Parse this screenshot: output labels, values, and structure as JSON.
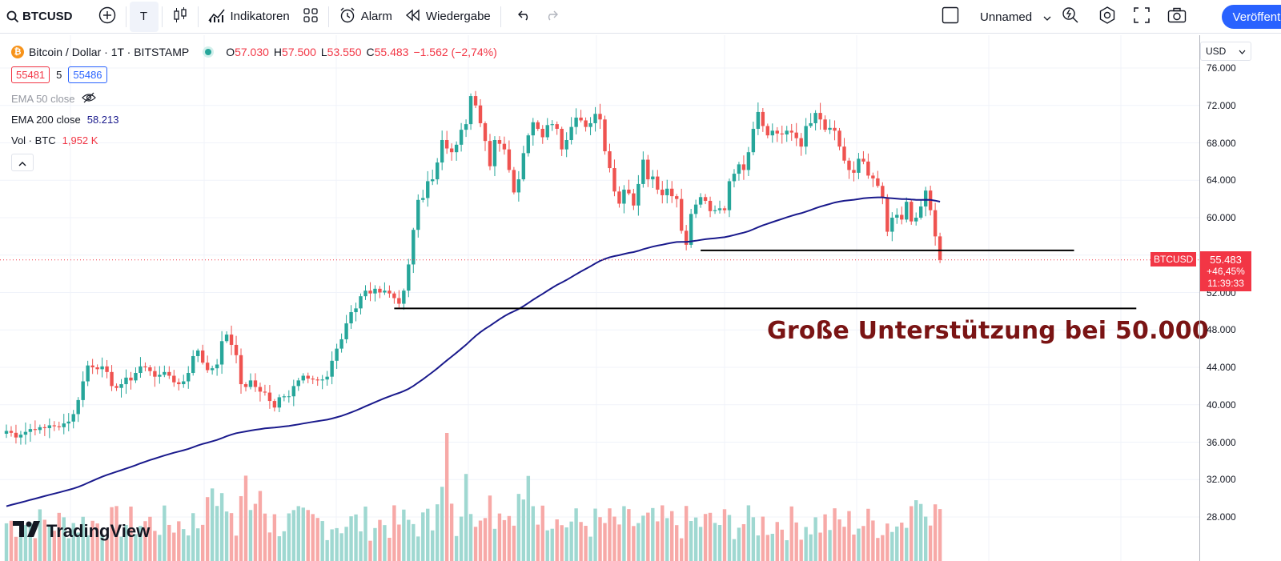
{
  "toolbar": {
    "symbol": "BTCUSD",
    "timeframe": "T",
    "indicators_label": "Indikatoren",
    "alert_label": "Alarm",
    "replay_label": "Wiedergabe",
    "layout_name": "Unnamed",
    "publish_label": "Veröffentli"
  },
  "legend": {
    "title": "Bitcoin / Dollar · 1T · BITSTAMP",
    "o_label": "O",
    "o_value": "57.030",
    "h_label": "H",
    "h_value": "57.500",
    "l_label": "L",
    "l_value": "53.550",
    "c_label": "C",
    "c_value": "55.483",
    "change": "−1.562 (−2,74%)",
    "bid": "55481",
    "spread": "5",
    "ask": "55486",
    "ema50_label": "EMA 50 close",
    "ema200_label": "EMA 200 close",
    "ema200_value": "58.213",
    "vol_label": "Vol · BTC",
    "vol_value": "1,952 K"
  },
  "price_scale": {
    "currency": "USD",
    "ticks": [
      "76.000",
      "72.000",
      "68.000",
      "64.000",
      "60.000",
      "56.000",
      "52.000",
      "48.000",
      "44.000",
      "40.000",
      "36.000",
      "32.000",
      "28.000"
    ],
    "last_price": "55.483",
    "last_change": "+46,45%",
    "countdown": "11:39:33",
    "symbol_tag": "BTCUSD"
  },
  "annotation": {
    "text": "Große Unterstützung bei 50.000"
  },
  "branding": {
    "logo_text": "TradingView"
  },
  "colors": {
    "up": "#26a69a",
    "down": "#ef5350",
    "ema200": "#1a1a8c",
    "annotation": "#7a1414",
    "accent": "#2962ff"
  },
  "chart_data": {
    "type": "candlestick",
    "title": "Bitcoin / Dollar · 1T · BITSTAMP",
    "ylim": [
      26000,
      78000
    ],
    "x_count": 207,
    "candles_approx_close": [
      37200,
      37000,
      36500,
      36800,
      37100,
      37400,
      37300,
      37600,
      37500,
      37800,
      37700,
      37600,
      38000,
      38200,
      39000,
      40500,
      42500,
      44200,
      44000,
      43800,
      44100,
      43500,
      42000,
      41800,
      42200,
      42900,
      42600,
      43400,
      44100,
      44000,
      43600,
      43000,
      43200,
      43500,
      43100,
      42400,
      42200,
      42500,
      43400,
      45200,
      45800,
      44500,
      43700,
      43900,
      44300,
      46800,
      47500,
      46400,
      45300,
      42200,
      41900,
      42600,
      41900,
      41400,
      41300,
      40400,
      39700,
      40800,
      40900,
      40900,
      42000,
      42600,
      43100,
      42800,
      42700,
      42600,
      42700,
      43000,
      44700,
      46000,
      47000,
      48700,
      49900,
      50300,
      51600,
      52200,
      51900,
      52400,
      52000,
      52200,
      51900,
      51400,
      50800,
      52200,
      55000,
      58700,
      61900,
      62100,
      63900,
      64100,
      65900,
      68300,
      67400,
      67000,
      67800,
      69400,
      70000,
      73000,
      72000,
      70100,
      68200,
      65500,
      68300,
      67900,
      67300,
      65100,
      62700,
      64100,
      66900,
      68800,
      70200,
      69500,
      68600,
      69900,
      70000,
      69500,
      67300,
      68300,
      69700,
      70700,
      70400,
      69700,
      70100,
      71100,
      70500,
      67100,
      65300,
      62800,
      61500,
      63000,
      62600,
      61300,
      63600,
      66200,
      64100,
      64400,
      63000,
      62400,
      63100,
      62300,
      62000,
      58600,
      57100,
      60400,
      61400,
      62200,
      61800,
      60700,
      60800,
      61000,
      60800,
      63900,
      64700,
      65700,
      65100,
      67000,
      69500,
      71300,
      69800,
      68800,
      69300,
      69000,
      68900,
      69300,
      69100,
      68500,
      67600,
      69800,
      70100,
      71200,
      70500,
      69400,
      69600,
      69300,
      67600,
      66100,
      65100,
      64800,
      66300,
      66000,
      64500,
      64200,
      63400,
      62200,
      58500,
      60000,
      60300,
      59800,
      61700,
      59600,
      60000,
      61200,
      62900,
      60800,
      58000,
      55483
    ],
    "ema200_approx": {
      "start": 29000,
      "end": 58213
    },
    "horizontal_lines": [
      {
        "price": 56500,
        "from_index": 145,
        "to_index": 223
      },
      {
        "price": 50300,
        "from_index": 81,
        "to_index": 236
      }
    ],
    "series": [
      {
        "name": "EMA 200 close",
        "last": 58213
      },
      {
        "name": "Vol · BTC",
        "last": "1,952 K"
      }
    ],
    "xlabel": "",
    "ylabel": ""
  }
}
